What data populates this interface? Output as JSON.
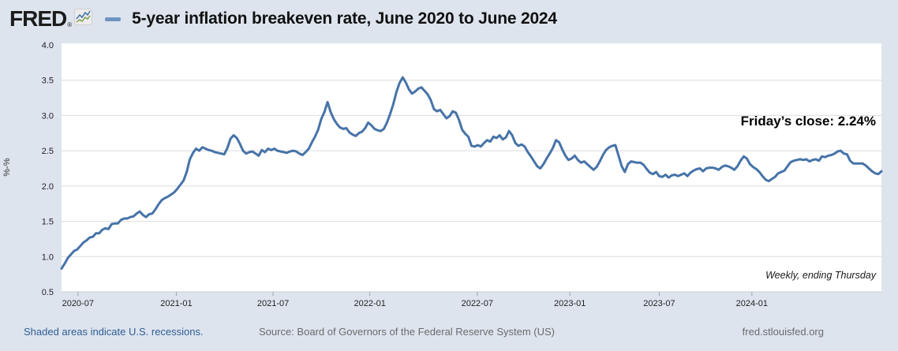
{
  "header": {
    "logo_text": "FRED",
    "logo_registered": "®",
    "legend_dash_color": "#6f94c3",
    "title": "5-year inflation breakeven rate, June 2020 to June 2024"
  },
  "annotations": {
    "fridays_close": "Friday’s close: 2.24%",
    "frequency": "Weekly, ending Thursday"
  },
  "footer": {
    "recessions_note": "Shaded areas indicate U.S. recessions.",
    "source": "Source: Board of Governors of the Federal Reserve System (US)",
    "site": "fred.stlouisfed.org"
  },
  "colors": {
    "page_bg": "#dde4ee",
    "plot_bg": "#ffffff",
    "grid": "#dcdcdc",
    "axis_line": "#c9cfdb",
    "tick_mark": "#9aa4b5",
    "tick_text": "#222222",
    "line": "#4673a8",
    "logo_icon_blue": "#4a76ad",
    "logo_icon_green": "#7a9c49"
  },
  "chart_data": {
    "type": "line",
    "title": "5-year inflation breakeven rate, June 2020 to June 2024",
    "series_name": "5-year breakeven inflation rate",
    "ylabel": "%-%",
    "ylim": [
      0.5,
      4.0
    ],
    "y_ticks": [
      4.0,
      3.5,
      3.0,
      2.5,
      2.0,
      1.5,
      1.0,
      0.5
    ],
    "x_range": [
      "2020-06",
      "2024-06"
    ],
    "frequency": "Weekly, ending Thursday",
    "grid": "horizontal",
    "legend_position": "none",
    "last_value_label": "Friday’s close: 2.24%",
    "x_ticks": [
      {
        "label": "2020-07",
        "pos": 0.02
      },
      {
        "label": "2021-01",
        "pos": 0.14
      },
      {
        "label": "2021-07",
        "pos": 0.258
      },
      {
        "label": "2022-01",
        "pos": 0.376
      },
      {
        "label": "2022-07",
        "pos": 0.507
      },
      {
        "label": "2023-01",
        "pos": 0.62
      },
      {
        "label": "2023-07",
        "pos": 0.729
      },
      {
        "label": "2024-01",
        "pos": 0.842
      }
    ],
    "values_note": "weekly values, evenly spaced from 2020-06 to 2024-06",
    "values": [
      0.83,
      0.9,
      0.98,
      1.03,
      1.08,
      1.1,
      1.15,
      1.2,
      1.23,
      1.27,
      1.28,
      1.33,
      1.33,
      1.38,
      1.4,
      1.39,
      1.46,
      1.47,
      1.47,
      1.52,
      1.54,
      1.54,
      1.56,
      1.57,
      1.61,
      1.64,
      1.59,
      1.56,
      1.6,
      1.61,
      1.67,
      1.74,
      1.8,
      1.83,
      1.85,
      1.88,
      1.91,
      1.96,
      2.02,
      2.08,
      2.2,
      2.38,
      2.47,
      2.53,
      2.5,
      2.55,
      2.53,
      2.51,
      2.5,
      2.48,
      2.47,
      2.46,
      2.45,
      2.54,
      2.67,
      2.72,
      2.68,
      2.6,
      2.5,
      2.46,
      2.48,
      2.49,
      2.46,
      2.43,
      2.51,
      2.48,
      2.53,
      2.51,
      2.53,
      2.5,
      2.49,
      2.48,
      2.47,
      2.49,
      2.5,
      2.49,
      2.46,
      2.44,
      2.48,
      2.53,
      2.62,
      2.7,
      2.8,
      2.95,
      3.05,
      3.19,
      3.05,
      2.95,
      2.88,
      2.83,
      2.81,
      2.82,
      2.76,
      2.73,
      2.71,
      2.75,
      2.77,
      2.82,
      2.9,
      2.86,
      2.81,
      2.79,
      2.78,
      2.81,
      2.9,
      3.02,
      3.16,
      3.33,
      3.46,
      3.54,
      3.47,
      3.37,
      3.31,
      3.34,
      3.38,
      3.4,
      3.35,
      3.3,
      3.22,
      3.09,
      3.06,
      3.08,
      3.02,
      2.96,
      2.99,
      3.06,
      3.04,
      2.94,
      2.8,
      2.74,
      2.7,
      2.57,
      2.56,
      2.58,
      2.56,
      2.61,
      2.65,
      2.63,
      2.7,
      2.68,
      2.72,
      2.66,
      2.69,
      2.78,
      2.72,
      2.61,
      2.57,
      2.59,
      2.56,
      2.48,
      2.42,
      2.35,
      2.28,
      2.25,
      2.31,
      2.39,
      2.46,
      2.54,
      2.65,
      2.62,
      2.52,
      2.43,
      2.37,
      2.39,
      2.43,
      2.37,
      2.33,
      2.35,
      2.31,
      2.27,
      2.23,
      2.27,
      2.35,
      2.44,
      2.51,
      2.55,
      2.57,
      2.58,
      2.43,
      2.28,
      2.2,
      2.31,
      2.35,
      2.34,
      2.33,
      2.33,
      2.3,
      2.24,
      2.19,
      2.17,
      2.2,
      2.14,
      2.13,
      2.16,
      2.12,
      2.15,
      2.16,
      2.14,
      2.16,
      2.18,
      2.14,
      2.19,
      2.22,
      2.24,
      2.25,
      2.21,
      2.25,
      2.26,
      2.26,
      2.25,
      2.23,
      2.27,
      2.29,
      2.28,
      2.26,
      2.23,
      2.28,
      2.36,
      2.42,
      2.39,
      2.31,
      2.27,
      2.24,
      2.2,
      2.14,
      2.09,
      2.07,
      2.1,
      2.13,
      2.18,
      2.2,
      2.22,
      2.28,
      2.34,
      2.36,
      2.37,
      2.38,
      2.37,
      2.38,
      2.35,
      2.37,
      2.38,
      2.36,
      2.42,
      2.41,
      2.43,
      2.44,
      2.46,
      2.49,
      2.5,
      2.46,
      2.45,
      2.36,
      2.32,
      2.32,
      2.32,
      2.32,
      2.29,
      2.25,
      2.21,
      2.18,
      2.17,
      2.21
    ],
    "line_color": "#4673a8"
  }
}
